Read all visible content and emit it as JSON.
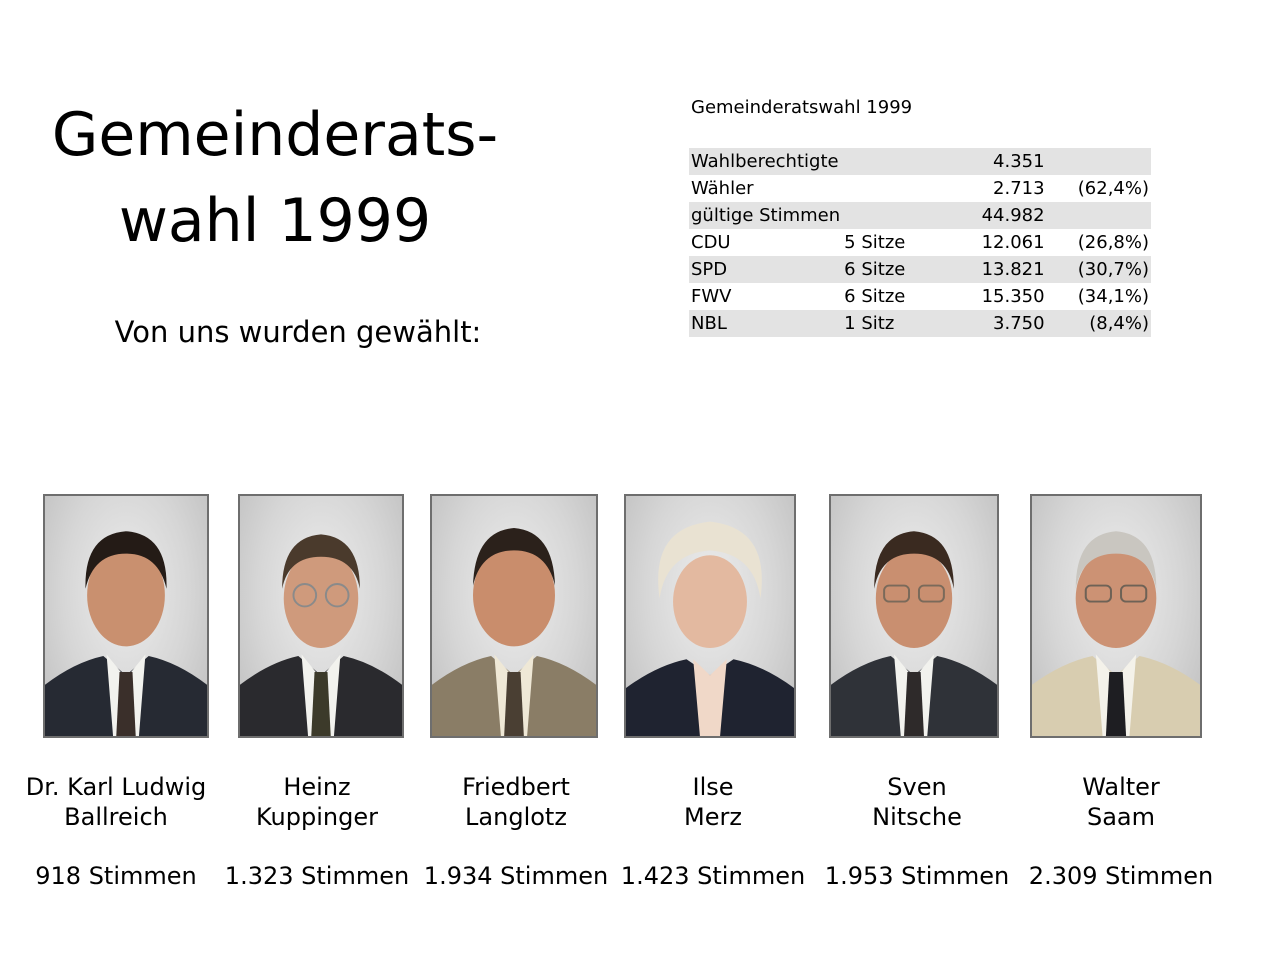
{
  "title": {
    "line1": "Gemeinderats-",
    "line2": "wahl 1999"
  },
  "subtitle": "Von uns wurden gewählt:",
  "results": {
    "caption": "Gemeinderatswahl 1999",
    "rows": [
      {
        "label": "Wahlberechtigte",
        "seats": "",
        "value": "4.351",
        "percent": ""
      },
      {
        "label": "Wähler",
        "seats": "",
        "value": "2.713",
        "percent": "(62,4%)"
      },
      {
        "label": "gültige Stimmen",
        "seats": "",
        "value": "44.982",
        "percent": ""
      },
      {
        "label": "CDU",
        "seats": "5 Sitze",
        "value": "12.061",
        "percent": "(26,8%)"
      },
      {
        "label": "SPD",
        "seats": "6 Sitze",
        "value": "13.821",
        "percent": "(30,7%)"
      },
      {
        "label": "FWV",
        "seats": "6 Sitze",
        "value": "15.350",
        "percent": "(34,1%)"
      },
      {
        "label": "NBL",
        "seats": "1 Sitz",
        "value": "3.750",
        "percent": "(8,4%)"
      }
    ]
  },
  "candidates": [
    {
      "first": "Dr. Karl Ludwig",
      "last": "Ballreich",
      "votes": "918 Stimmen"
    },
    {
      "first": "Heinz",
      "last": "Kuppinger",
      "votes": "1.323 Stimmen"
    },
    {
      "first": "Friedbert",
      "last": "Langlotz",
      "votes": "1.934 Stimmen"
    },
    {
      "first": "Ilse",
      "last": "Merz",
      "votes": "1.423 Stimmen"
    },
    {
      "first": "Sven",
      "last": "Nitsche",
      "votes": "1.953 Stimmen"
    },
    {
      "first": "Walter",
      "last": "Saam",
      "votes": "2.309 Stimmen"
    }
  ]
}
